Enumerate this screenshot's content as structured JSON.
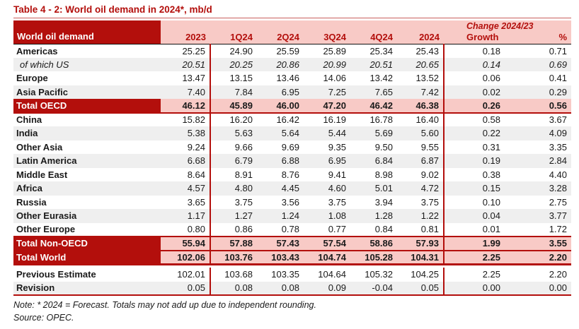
{
  "title": "Table 4 - 2: World oil demand in 2024*, mb/d",
  "table": {
    "corner_label": "World oil demand",
    "change_header": "Change 2024/23",
    "columns": [
      "2023",
      "1Q24",
      "2Q24",
      "3Q24",
      "4Q24",
      "2024",
      "Growth",
      "%"
    ],
    "rows": [
      {
        "label": "Americas",
        "kind": "normal",
        "values": [
          "25.25",
          "24.90",
          "25.59",
          "25.89",
          "25.34",
          "25.43",
          "0.18",
          "0.71"
        ]
      },
      {
        "label": "of which US",
        "kind": "italic",
        "values": [
          "20.51",
          "20.25",
          "20.86",
          "20.99",
          "20.51",
          "20.65",
          "0.14",
          "0.69"
        ]
      },
      {
        "label": "Europe",
        "kind": "normal",
        "values": [
          "13.47",
          "13.15",
          "13.46",
          "14.06",
          "13.42",
          "13.52",
          "0.06",
          "0.41"
        ]
      },
      {
        "label": "Asia Pacific",
        "kind": "normal",
        "values": [
          "7.40",
          "7.84",
          "6.95",
          "7.25",
          "7.65",
          "7.42",
          "0.02",
          "0.29"
        ]
      },
      {
        "label": "Total OECD",
        "kind": "total",
        "values": [
          "46.12",
          "45.89",
          "46.00",
          "47.20",
          "46.42",
          "46.38",
          "0.26",
          "0.56"
        ]
      },
      {
        "label": "China",
        "kind": "normal",
        "values": [
          "15.82",
          "16.20",
          "16.42",
          "16.19",
          "16.78",
          "16.40",
          "0.58",
          "3.67"
        ]
      },
      {
        "label": "India",
        "kind": "normal",
        "values": [
          "5.38",
          "5.63",
          "5.64",
          "5.44",
          "5.69",
          "5.60",
          "0.22",
          "4.09"
        ]
      },
      {
        "label": "Other Asia",
        "kind": "normal",
        "values": [
          "9.24",
          "9.66",
          "9.69",
          "9.35",
          "9.50",
          "9.55",
          "0.31",
          "3.35"
        ]
      },
      {
        "label": "Latin America",
        "kind": "normal",
        "values": [
          "6.68",
          "6.79",
          "6.88",
          "6.95",
          "6.84",
          "6.87",
          "0.19",
          "2.84"
        ]
      },
      {
        "label": "Middle East",
        "kind": "normal",
        "values": [
          "8.64",
          "8.91",
          "8.76",
          "9.41",
          "8.98",
          "9.02",
          "0.38",
          "4.40"
        ]
      },
      {
        "label": "Africa",
        "kind": "normal",
        "values": [
          "4.57",
          "4.80",
          "4.45",
          "4.60",
          "5.01",
          "4.72",
          "0.15",
          "3.28"
        ]
      },
      {
        "label": "Russia",
        "kind": "normal",
        "values": [
          "3.65",
          "3.75",
          "3.56",
          "3.75",
          "3.94",
          "3.75",
          "0.10",
          "2.75"
        ]
      },
      {
        "label": "Other Eurasia",
        "kind": "normal",
        "values": [
          "1.17",
          "1.27",
          "1.24",
          "1.08",
          "1.28",
          "1.22",
          "0.04",
          "3.77"
        ]
      },
      {
        "label": "Other Europe",
        "kind": "normal",
        "values": [
          "0.80",
          "0.86",
          "0.78",
          "0.77",
          "0.84",
          "0.81",
          "0.01",
          "1.72"
        ]
      },
      {
        "label": "Total Non-OECD",
        "kind": "total",
        "values": [
          "55.94",
          "57.88",
          "57.43",
          "57.54",
          "58.86",
          "57.93",
          "1.99",
          "3.55"
        ]
      },
      {
        "label": "Total World",
        "kind": "total",
        "values": [
          "102.06",
          "103.76",
          "103.43",
          "104.74",
          "105.28",
          "104.31",
          "2.25",
          "2.20"
        ]
      },
      {
        "label": "Previous Estimate",
        "kind": "normal",
        "values": [
          "102.01",
          "103.68",
          "103.35",
          "104.64",
          "105.32",
          "104.25",
          "2.25",
          "2.20"
        ]
      },
      {
        "label": "Revision",
        "kind": "normal",
        "values": [
          "0.05",
          "0.08",
          "0.08",
          "0.09",
          "-0.04",
          "0.05",
          "0.00",
          "0.00"
        ]
      }
    ]
  },
  "footnotes": {
    "note": "Note: * 2024 = Forecast. Totals may not add up due to independent rounding.",
    "source": "Source: OPEC."
  },
  "colors": {
    "dark_red": "#B30F0C",
    "pink": "#F8CAC6",
    "stripe_gray": "#EFEFEF"
  }
}
